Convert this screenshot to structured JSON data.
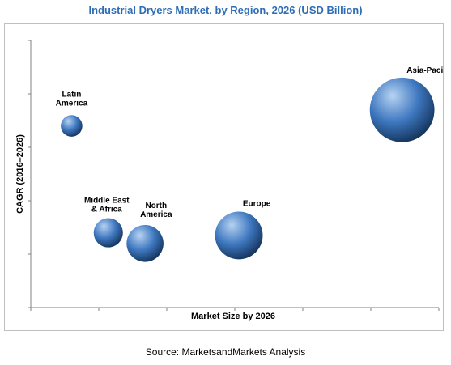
{
  "chart_data": {
    "type": "bubble",
    "title": "Industrial Dryers Market, by Region, 2026 (USD Billion)",
    "xlabel": "Market Size by 2026",
    "ylabel": "CAGR (2016–2026)",
    "xlim": [
      0,
      100
    ],
    "ylim": [
      0,
      100
    ],
    "series": [
      {
        "name": "Latin America",
        "label_lines": [
          "Latin",
          "America"
        ],
        "x": 10,
        "y": 68,
        "size": 14
      },
      {
        "name": "Middle East & Africa",
        "label_lines": [
          "Middle East",
          "& Africa"
        ],
        "x": 19,
        "y": 28,
        "size": 19
      },
      {
        "name": "North America",
        "label_lines": [
          "North",
          "America"
        ],
        "x": 28,
        "y": 24,
        "size": 24
      },
      {
        "name": "Europe",
        "label_lines": [
          "Europe"
        ],
        "x": 51,
        "y": 27,
        "size": 31
      },
      {
        "name": "Asia-Pacific",
        "label_lines": [
          "Asia-Pacific"
        ],
        "x": 91,
        "y": 74,
        "size": 42
      }
    ],
    "colors": {
      "bubble_fill": "#3f78c0",
      "bubble_highlight": "#b7d3f2",
      "bubble_shadow": "#15365f",
      "axis": "#808080",
      "title": "#2e6db4"
    },
    "grid": false,
    "legend": "none"
  },
  "source": "Source: MarketsandMarkets Analysis"
}
